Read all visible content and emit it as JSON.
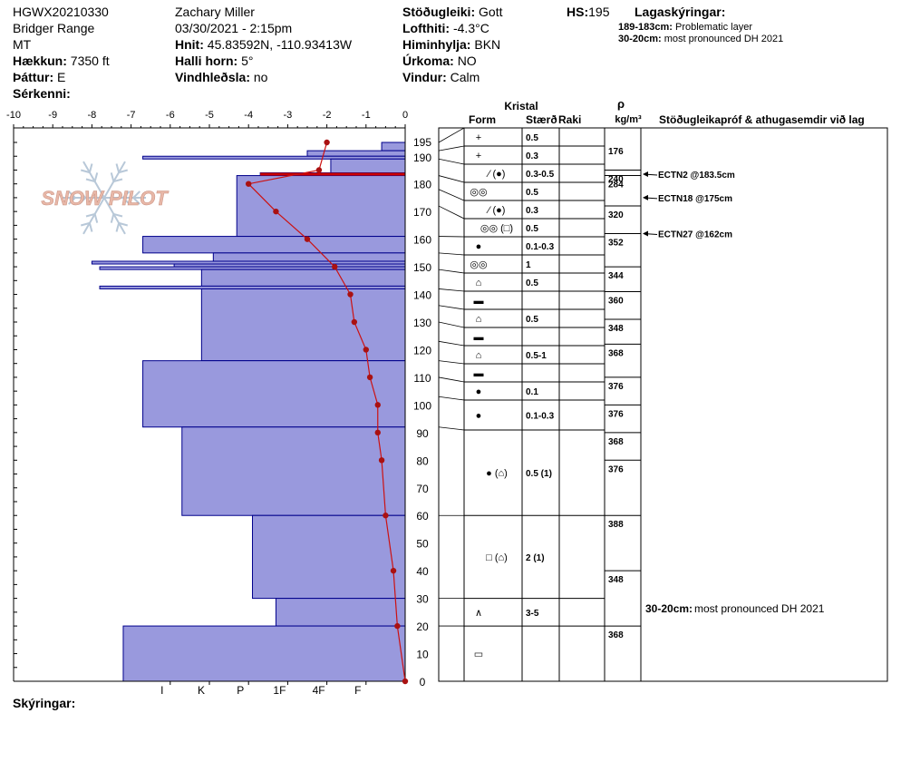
{
  "header": {
    "id": "HGWX20210330",
    "range": "Bridger Range",
    "state": "MT",
    "elevation_label": "Hækkun:",
    "elevation_value": "7350 ft",
    "aspect_label": "Þáttur:",
    "aspect_value": "E",
    "specifics_label": "Sérkenni:",
    "observer": "Zachary Miller",
    "datetime": "03/30/2021 - 2:15pm",
    "coords_label": "Hnit:",
    "coords_value": "45.83592N, -110.93413W",
    "slope_label": "Halli horn:",
    "slope_value": "5°",
    "wind_loading_label": "Vindhleðsla:",
    "wind_loading_value": "no",
    "stability_label": "Stöðugleiki:",
    "stability_value": "Gott",
    "air_temp_label": "Lofthiti:",
    "air_temp_value": "-4.3°C",
    "sky_label": "Himinhylja:",
    "sky_value": "BKN",
    "precip_label": "Úrkoma:",
    "precip_value": "NO",
    "wind_label": "Vindur:",
    "wind_value": "Calm",
    "hs_label": "HS:",
    "hs_value": "195",
    "layer_notes_title": "Lagaskýringar:",
    "layer_notes": [
      {
        "range": "189-183cm:",
        "text": "Problematic layer"
      },
      {
        "range": "30-20cm:",
        "text": "most pronounced DH 2021"
      }
    ]
  },
  "footer": {
    "notes_label": "Skýringar:"
  },
  "logo": {
    "text": "SNOW PILOT"
  },
  "columns": {
    "kristal": "Kristal",
    "form": "Form",
    "size": "Stærð",
    "moisture": "Raki",
    "rho": "ρ",
    "density_unit": "kg/m³",
    "tests": "Stöðugleikapróf & athugasemdir við lag"
  },
  "colors": {
    "hardness_fill": "#9999dd",
    "hardness_stroke": "#00008b",
    "temp_line": "#cc1111",
    "temp_point": "#aa1111",
    "problem_layer": "#cc0000",
    "logo_text": "#e8b8a8",
    "logo_flake": "#b8c8d8"
  },
  "chart_data": {
    "type": "snow_profile",
    "temp_axis": {
      "min": -10,
      "max": 0,
      "ticks": [
        -10,
        -9,
        -8,
        -7,
        -6,
        -5,
        -4,
        -3,
        -2,
        -1,
        0
      ]
    },
    "depth_axis": {
      "min": 0,
      "max": 195,
      "ticks": [
        0,
        10,
        20,
        30,
        40,
        50,
        60,
        70,
        80,
        90,
        100,
        110,
        120,
        130,
        140,
        150,
        160,
        170,
        180,
        190,
        195
      ]
    },
    "hardness_scale": {
      "labels": [
        "I",
        "K",
        "P",
        "1F",
        "4F",
        "F"
      ],
      "values": [
        6,
        5,
        4,
        3,
        2,
        1
      ]
    },
    "hardness_layers": [
      {
        "top": 195,
        "bottom": 192,
        "h": 0.6
      },
      {
        "top": 192,
        "bottom": 190,
        "h": 2.5
      },
      {
        "top": 190,
        "bottom": 189,
        "h": 6.7
      },
      {
        "top": 189,
        "bottom": 184,
        "h": 1.9
      },
      {
        "top": 184,
        "bottom": 183,
        "h": 3.7
      },
      {
        "top": 183,
        "bottom": 161,
        "h": 4.3
      },
      {
        "top": 161,
        "bottom": 155,
        "h": 6.7
      },
      {
        "top": 155,
        "bottom": 152,
        "h": 4.9
      },
      {
        "top": 152,
        "bottom": 151,
        "h": 8.0
      },
      {
        "top": 151,
        "bottom": 150,
        "h": 5.9
      },
      {
        "top": 150,
        "bottom": 149,
        "h": 7.8
      },
      {
        "top": 149,
        "bottom": 143,
        "h": 5.2
      },
      {
        "top": 143,
        "bottom": 142,
        "h": 7.8
      },
      {
        "top": 142,
        "bottom": 116,
        "h": 5.2
      },
      {
        "top": 116,
        "bottom": 92,
        "h": 6.7
      },
      {
        "top": 92,
        "bottom": 60,
        "h": 5.7
      },
      {
        "top": 60,
        "bottom": 30,
        "h": 3.9
      },
      {
        "top": 30,
        "bottom": 20,
        "h": 3.3
      },
      {
        "top": 20,
        "bottom": 0,
        "h": 7.2
      }
    ],
    "problem_layer": {
      "top": 184,
      "bottom": 183
    },
    "temperature_profile": [
      {
        "depth": 195,
        "temp": -2.0
      },
      {
        "depth": 185,
        "temp": -2.2
      },
      {
        "depth": 180,
        "temp": -4.0
      },
      {
        "depth": 170,
        "temp": -3.3
      },
      {
        "depth": 160,
        "temp": -2.5
      },
      {
        "depth": 150,
        "temp": -1.8
      },
      {
        "depth": 140,
        "temp": -1.4
      },
      {
        "depth": 130,
        "temp": -1.3
      },
      {
        "depth": 120,
        "temp": -1.0
      },
      {
        "depth": 110,
        "temp": -0.9
      },
      {
        "depth": 100,
        "temp": -0.7
      },
      {
        "depth": 90,
        "temp": -0.7
      },
      {
        "depth": 80,
        "temp": -0.6
      },
      {
        "depth": 60,
        "temp": -0.5
      },
      {
        "depth": 40,
        "temp": -0.3
      },
      {
        "depth": 20,
        "temp": -0.2
      },
      {
        "depth": 0,
        "temp": 0.0
      }
    ],
    "layers": [
      {
        "top": 195,
        "bottom": 192,
        "form": "+",
        "size": "0.5",
        "moisture": ""
      },
      {
        "top": 192,
        "bottom": 189,
        "form": "+",
        "size": "0.3",
        "moisture": ""
      },
      {
        "top": 189,
        "bottom": 183,
        "form": "⁄ (●)",
        "size": "0.3-0.5",
        "moisture": ""
      },
      {
        "top": 183,
        "bottom": 178,
        "form": "◎◎",
        "size": "0.5",
        "moisture": ""
      },
      {
        "top": 178,
        "bottom": 172,
        "form": "⁄ (●)",
        "size": "0.3",
        "moisture": ""
      },
      {
        "top": 172,
        "bottom": 161,
        "form": "◎◎ (□)",
        "size": "0.5",
        "moisture": ""
      },
      {
        "top": 161,
        "bottom": 155,
        "form": "●",
        "size": "0.1-0.3",
        "moisture": ""
      },
      {
        "top": 155,
        "bottom": 149,
        "form": "◎◎",
        "size": "1",
        "moisture": ""
      },
      {
        "top": 149,
        "bottom": 142,
        "form": "⌂",
        "size": "0.5",
        "moisture": ""
      },
      {
        "top": 142,
        "bottom": 136,
        "form": "▬",
        "size": "",
        "moisture": ""
      },
      {
        "top": 136,
        "bottom": 130,
        "form": "⌂",
        "size": "0.5",
        "moisture": ""
      },
      {
        "top": 130,
        "bottom": 123,
        "form": "▬",
        "size": "",
        "moisture": ""
      },
      {
        "top": 123,
        "bottom": 116,
        "form": "⌂",
        "size": "0.5-1",
        "moisture": ""
      },
      {
        "top": 116,
        "bottom": 110,
        "form": "▬",
        "size": "",
        "moisture": ""
      },
      {
        "top": 110,
        "bottom": 103,
        "form": "●",
        "size": "0.1",
        "moisture": ""
      },
      {
        "top": 103,
        "bottom": 92,
        "form": "●",
        "size": "0.1-0.3",
        "moisture": ""
      },
      {
        "top": 92,
        "bottom": 60,
        "form": "● (⌂)",
        "size": "0.5 (1)",
        "moisture": ""
      },
      {
        "top": 60,
        "bottom": 30,
        "form": "□ (⌂)",
        "size": "2 (1)",
        "moisture": ""
      },
      {
        "top": 30,
        "bottom": 20,
        "form": "∧",
        "size": "3-5",
        "moisture": ""
      },
      {
        "top": 20,
        "bottom": 0,
        "form": "▭",
        "size": "",
        "moisture": ""
      }
    ],
    "densities": [
      {
        "top": 195,
        "bottom": 185,
        "value": "176"
      },
      {
        "top": 185,
        "bottom": 183,
        "value": "240"
      },
      {
        "top": 183,
        "bottom": 172,
        "value": "284"
      },
      {
        "top": 172,
        "bottom": 162,
        "value": "320"
      },
      {
        "top": 162,
        "bottom": 150,
        "value": "352"
      },
      {
        "top": 150,
        "bottom": 141,
        "value": "344"
      },
      {
        "top": 141,
        "bottom": 131,
        "value": "360"
      },
      {
        "top": 131,
        "bottom": 122,
        "value": "348"
      },
      {
        "top": 122,
        "bottom": 110,
        "value": "368"
      },
      {
        "top": 110,
        "bottom": 100,
        "value": "376"
      },
      {
        "top": 100,
        "bottom": 90,
        "value": "376"
      },
      {
        "top": 90,
        "bottom": 80,
        "value": "368"
      },
      {
        "top": 80,
        "bottom": 60,
        "value": "376"
      },
      {
        "top": 60,
        "bottom": 40,
        "value": "388"
      },
      {
        "top": 40,
        "bottom": 20,
        "value": "348"
      },
      {
        "top": 20,
        "bottom": 0,
        "value": "368"
      }
    ],
    "tests": [
      {
        "depth": 183.5,
        "text": "ECTN2 @183.5cm"
      },
      {
        "depth": 175,
        "text": "ECTN18 @175cm"
      },
      {
        "depth": 162,
        "text": "ECTN27 @162cm"
      }
    ],
    "layer_comments": [
      {
        "depth": 25,
        "label": "30-20cm:",
        "text": "most pronounced DH 2021"
      }
    ]
  }
}
